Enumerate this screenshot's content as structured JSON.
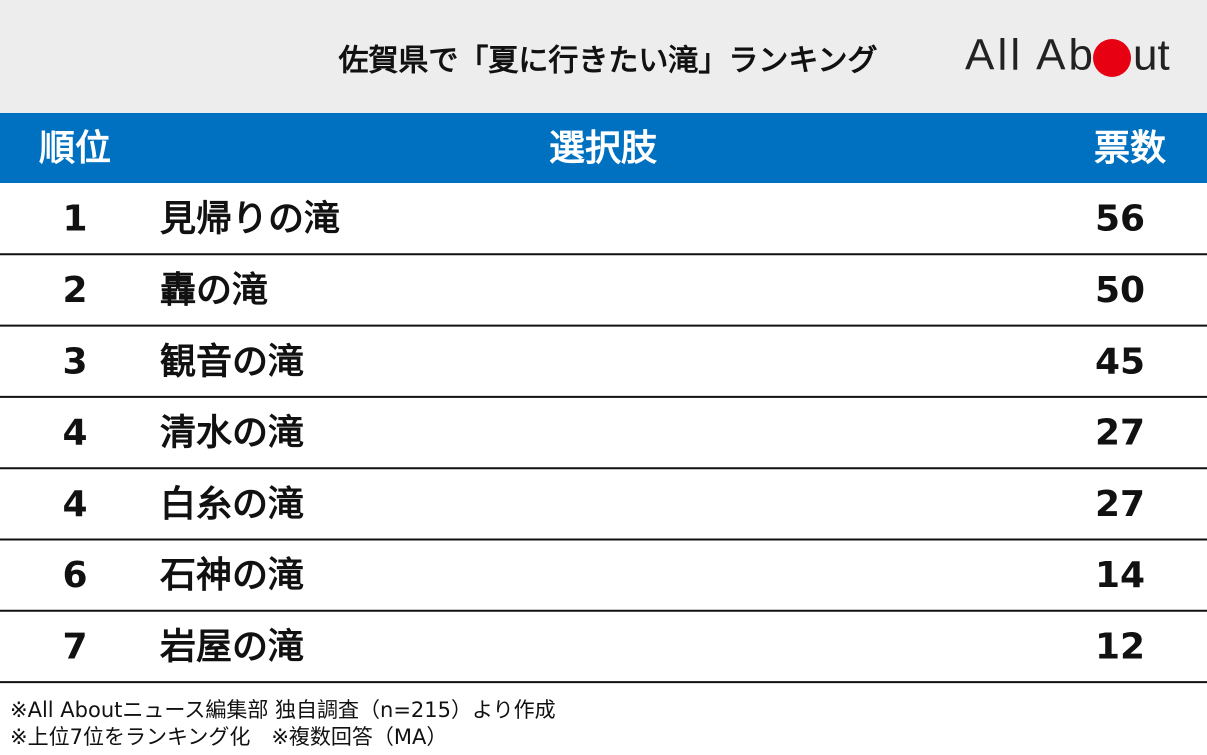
{
  "header": {
    "title": "佐賀県で「夏に行きたい滝」ランキング",
    "logo_start": "All Ab",
    "logo_end": "ut"
  },
  "table": {
    "columns": [
      "順位",
      "選択肢",
      "票数"
    ],
    "rows": [
      [
        1,
        "見帰りの滝",
        56
      ],
      [
        2,
        "轟の滝",
        50
      ],
      [
        3,
        "観音の滝",
        45
      ],
      [
        4,
        "清水の滝",
        27
      ],
      [
        4,
        "白糸の滝",
        27
      ],
      [
        6,
        "石神の滝",
        14
      ],
      [
        7,
        "岩屋の滝",
        12
      ]
    ]
  },
  "notes": [
    "※All Aboutニュース編集部 独自調査（n=215）より作成",
    "※上位7位をランキング化　※複数回答（MA）"
  ]
}
